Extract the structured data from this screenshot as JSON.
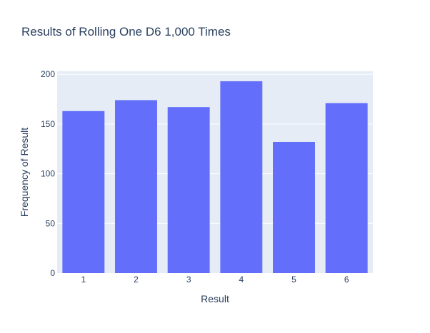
{
  "chart_data": {
    "type": "bar",
    "title": "Results of Rolling One D6 1,000 Times",
    "xlabel": "Result",
    "ylabel": "Frequency of Result",
    "categories": [
      "1",
      "2",
      "3",
      "4",
      "5",
      "6"
    ],
    "values": [
      163,
      174,
      167,
      193,
      132,
      171
    ],
    "yticks": [
      0,
      50,
      100,
      150,
      200
    ],
    "ylim": [
      0,
      203
    ],
    "grid": true,
    "legend": "none",
    "colors": {
      "bar": "#636efa",
      "plot_background": "#e5ecf6",
      "gridline": "#ffffff",
      "text": "#2a3f5f"
    }
  }
}
